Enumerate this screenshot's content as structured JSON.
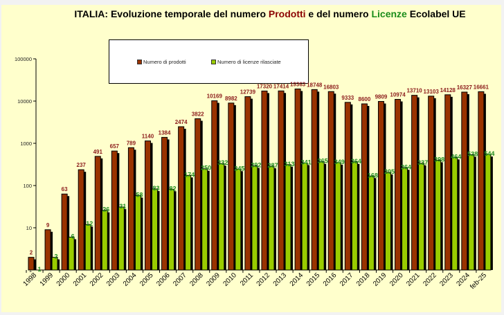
{
  "chart_data": {
    "type": "bar",
    "title_parts": [
      "ITALIA: Evoluzione temporale del numero ",
      "Prodotti",
      " e del numero  ",
      "Licenze",
      " Ecolabel UE"
    ],
    "yscale": "log",
    "ylim": [
      1,
      100000
    ],
    "yticks": [
      "1",
      "10",
      "100",
      "1000",
      "10000",
      "100000"
    ],
    "grid": false,
    "legend_position": "top-center",
    "categories": [
      "1998",
      "1999",
      "2000",
      "2001",
      "2002",
      "2003",
      "2004",
      "2005",
      "2006",
      "2007",
      "2008",
      "2009",
      "2010",
      "2011",
      "2012",
      "2013",
      "2014",
      "2015",
      "2016",
      "2017",
      "2018",
      "2019",
      "2020",
      "2021",
      "2022",
      "2023",
      "2024",
      "feb-25"
    ],
    "series": [
      {
        "name": "Numero di prodotti",
        "color": "#993300",
        "label_color": "#8b1a1a",
        "values": [
          2,
          9,
          63,
          237,
          491,
          657,
          789,
          1140,
          1384,
          2474,
          3822,
          10169,
          8982,
          12739,
          17320,
          17414,
          19363,
          18748,
          16803,
          9333,
          8600,
          9809,
          10974,
          13710,
          13103,
          14128,
          16327,
          16661
        ]
      },
      {
        "name": "Numero di licenze rilasciate",
        "color": "#99cc00",
        "label_color": "#1e8c1e",
        "values": [
          1,
          2,
          6,
          12,
          26,
          31,
          58,
          83,
          82,
          174,
          250,
          332,
          245,
          292,
          287,
          313,
          341,
          365,
          349,
          364,
          168,
          205,
          264,
          337,
          398,
          464,
          538,
          544
        ]
      }
    ]
  }
}
